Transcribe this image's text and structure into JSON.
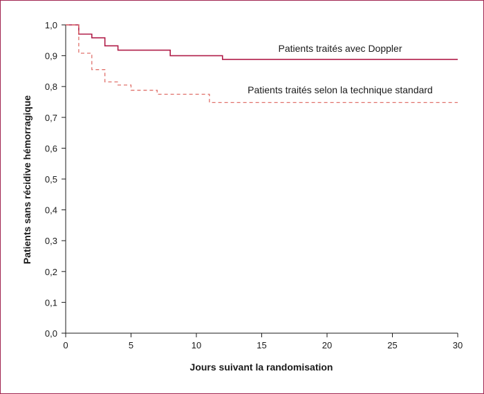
{
  "chart_data": {
    "type": "line",
    "step": true,
    "xlabel": "Jours suivant la randomisation",
    "ylabel": "Patients sans récidive hémorragique",
    "xlim": [
      0,
      30
    ],
    "ylim": [
      0,
      1
    ],
    "x_ticks": [
      "0",
      "5",
      "10",
      "15",
      "20",
      "25",
      "30"
    ],
    "x_tick_values": [
      0,
      5,
      10,
      15,
      20,
      25,
      30
    ],
    "y_ticks": [
      "0,0",
      "0,1",
      "0,2",
      "0,3",
      "0,4",
      "0,5",
      "0,6",
      "0,7",
      "0,8",
      "0,9",
      "1,0"
    ],
    "y_tick_values": [
      0,
      0.1,
      0.2,
      0.3,
      0.4,
      0.5,
      0.6,
      0.7,
      0.8,
      0.9,
      1.0
    ],
    "grid": false,
    "legend": "inline labels",
    "series": [
      {
        "name": "Patients traités avec Doppler",
        "color": "#b01c48",
        "style": "solid",
        "x": [
          0,
          1,
          2,
          3,
          4,
          8,
          12,
          30
        ],
        "y": [
          1.0,
          0.97,
          0.958,
          0.932,
          0.918,
          0.9,
          0.888,
          0.888
        ]
      },
      {
        "name": "Patients traités selon la technique standard",
        "color": "#e0706a",
        "style": "dashed",
        "x": [
          0,
          1,
          2,
          3,
          4,
          5,
          7,
          11,
          30
        ],
        "y": [
          1.0,
          0.908,
          0.855,
          0.815,
          0.805,
          0.788,
          0.775,
          0.748,
          0.748
        ]
      }
    ]
  }
}
